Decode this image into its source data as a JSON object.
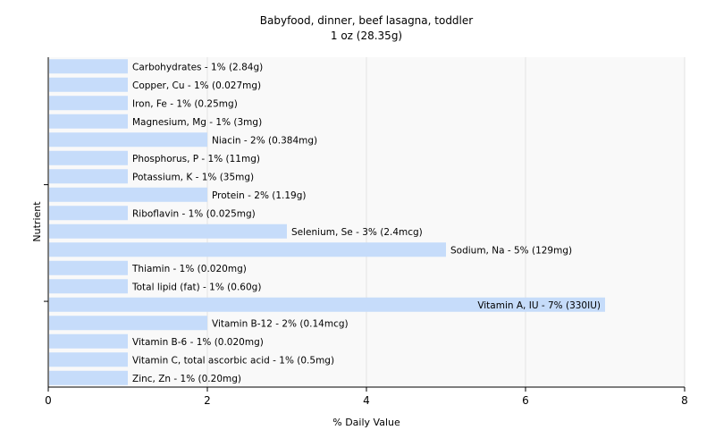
{
  "chart_data": {
    "type": "bar",
    "orientation": "horizontal",
    "title": "Babyfood, dinner, beef lasagna, toddler",
    "subtitle": "1 oz (28.35g)",
    "xlabel": "% Daily Value",
    "ylabel": "Nutrient",
    "xlim": [
      0,
      8
    ],
    "xticks": [
      0,
      2,
      4,
      6,
      8
    ],
    "grid": true,
    "bar_color": "#c6dcfa",
    "categories": [
      "Carbohydrates",
      "Copper, Cu",
      "Iron, Fe",
      "Magnesium, Mg",
      "Niacin",
      "Phosphorus, P",
      "Potassium, K",
      "Protein",
      "Riboflavin",
      "Selenium, Se",
      "Sodium, Na",
      "Thiamin",
      "Total lipid (fat)",
      "Vitamin A, IU",
      "Vitamin B-12",
      "Vitamin B-6",
      "Vitamin C, total ascorbic acid",
      "Zinc, Zn"
    ],
    "values": [
      1,
      1,
      1,
      1,
      2,
      1,
      1,
      2,
      1,
      3,
      5,
      1,
      1,
      7,
      2,
      1,
      1,
      1
    ],
    "labels": [
      "Carbohydrates - 1% (2.84g)",
      "Copper, Cu - 1% (0.027mg)",
      "Iron, Fe - 1% (0.25mg)",
      "Magnesium, Mg - 1% (3mg)",
      "Niacin - 2% (0.384mg)",
      "Phosphorus, P - 1% (11mg)",
      "Potassium, K - 1% (35mg)",
      "Protein - 2% (1.19g)",
      "Riboflavin - 1% (0.025mg)",
      "Selenium, Se - 3% (2.4mcg)",
      "Sodium, Na - 5% (129mg)",
      "Thiamin - 1% (0.020mg)",
      "Total lipid (fat) - 1% (0.60g)",
      "Vitamin A, IU - 7% (330IU)",
      "Vitamin B-12 - 2% (0.14mcg)",
      "Vitamin B-6 - 1% (0.020mg)",
      "Vitamin C, total ascorbic acid - 1% (0.5mg)",
      "Zinc, Zn - 1% (0.20mg)"
    ]
  }
}
